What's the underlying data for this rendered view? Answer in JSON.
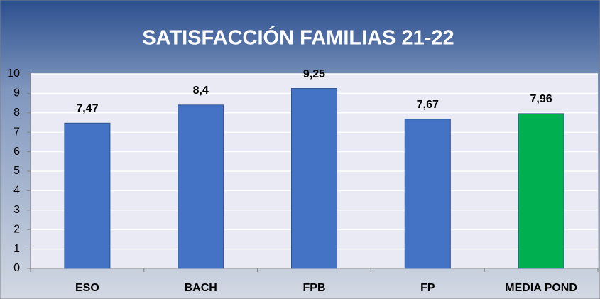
{
  "chart_data": {
    "type": "bar",
    "title": "SATISFACCIÓN FAMILIAS 21-22",
    "categories": [
      "ESO",
      "BACH",
      "FPB",
      "FP",
      "MEDIA POND"
    ],
    "values": [
      7.47,
      8.4,
      9.25,
      7.67,
      7.96
    ],
    "value_labels": [
      "7,47",
      "8,4",
      "9,25",
      "7,67",
      "7,96"
    ],
    "colors": [
      "#4472c4",
      "#4472c4",
      "#4472c4",
      "#4472c4",
      "#00b050"
    ],
    "ylim": [
      0,
      10
    ],
    "yticks": [
      0,
      1,
      2,
      3,
      4,
      5,
      6,
      7,
      8,
      9,
      10
    ],
    "grid": true
  }
}
